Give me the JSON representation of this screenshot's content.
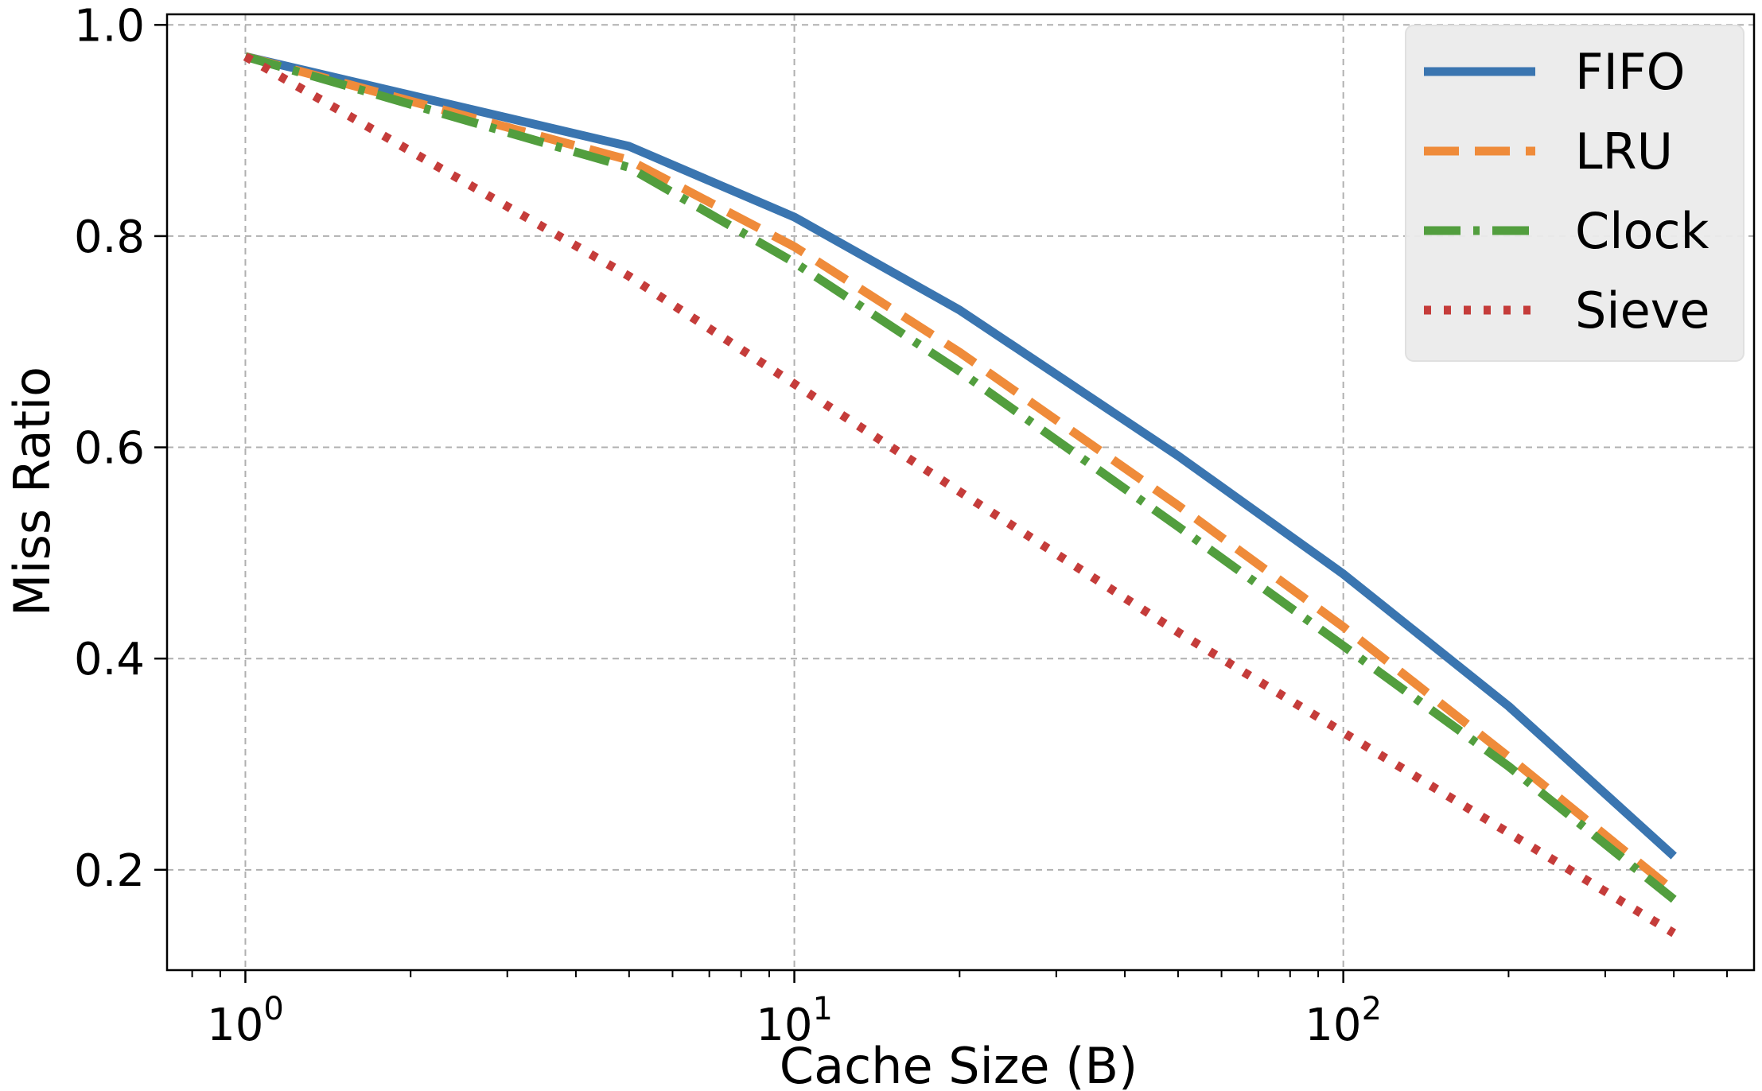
{
  "chart_data": {
    "type": "line",
    "title": "",
    "xlabel": "Cache Size (B)",
    "ylabel": "Miss Ratio",
    "xscale": "log",
    "xlim": [
      0.72,
      560
    ],
    "ylim": [
      0.105,
      1.01
    ],
    "grid": true,
    "legend_position": "top-right",
    "x": [
      1,
      5,
      10,
      20,
      50,
      100,
      200,
      400
    ],
    "x_ticks": [
      {
        "value": 1,
        "base": "10",
        "exp": "0"
      },
      {
        "value": 10,
        "base": "10",
        "exp": "1"
      },
      {
        "value": 100,
        "base": "10",
        "exp": "2"
      }
    ],
    "y_ticks": [
      {
        "value": 0.2,
        "label": "0.2"
      },
      {
        "value": 0.4,
        "label": "0.4"
      },
      {
        "value": 0.6,
        "label": "0.6"
      },
      {
        "value": 0.8,
        "label": "0.8"
      },
      {
        "value": 1.0,
        "label": "1.0"
      }
    ],
    "series": [
      {
        "name": "FIFO",
        "color": "#3a75b0",
        "dash": "solid",
        "values": [
          0.97,
          0.885,
          0.818,
          0.73,
          0.592,
          0.48,
          0.355,
          0.213
        ]
      },
      {
        "name": "LRU",
        "color": "#ef8b3a",
        "dash": "dashed",
        "values": [
          0.97,
          0.872,
          0.79,
          0.69,
          0.545,
          0.43,
          0.307,
          0.18
        ]
      },
      {
        "name": "Clock",
        "color": "#529e3e",
        "dash": "dashdot",
        "values": [
          0.97,
          0.865,
          0.775,
          0.672,
          0.525,
          0.412,
          0.298,
          0.172
        ]
      },
      {
        "name": "Sieve",
        "color": "#c53c3a",
        "dash": "dotted",
        "values": [
          0.97,
          0.762,
          0.66,
          0.558,
          0.425,
          0.33,
          0.235,
          0.14
        ]
      }
    ]
  }
}
